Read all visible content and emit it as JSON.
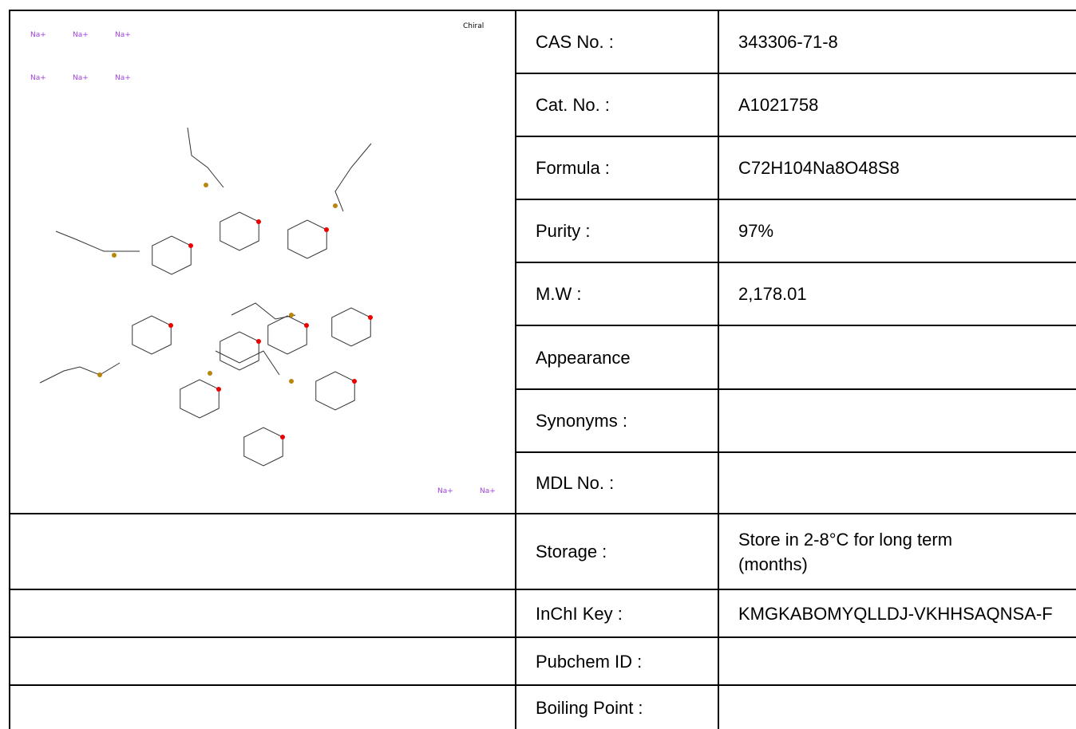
{
  "structure": {
    "chiral_label": "Chiral",
    "counterions": [
      "Na+",
      "Na+",
      "Na+",
      "Na+",
      "Na+",
      "Na+",
      "Na+",
      "Na+"
    ]
  },
  "table": {
    "rows": [
      {
        "label": "CAS No. :",
        "value": "343306-71-8"
      },
      {
        "label": "Cat. No. :",
        "value": "A1021758"
      },
      {
        "label": "Formula :",
        "value": "C72H104Na8O48S8"
      },
      {
        "label": "Purity :",
        "value": "97%"
      },
      {
        "label": "M.W :",
        "value": "2,178.01"
      },
      {
        "label": "Appearance"
      },
      {
        "label": "Synonyms :"
      },
      {
        "label": "MDL No. :"
      },
      {
        "label": "Storage :",
        "value": "Store in 2-8°C for long term (months)"
      },
      {
        "label": "InChI Key :",
        "value": "KMGKABOMYQLLDJ-VKHHSAQNSA-F"
      },
      {
        "label": "Pubchem ID :"
      },
      {
        "label": "Boiling Point :"
      }
    ]
  }
}
